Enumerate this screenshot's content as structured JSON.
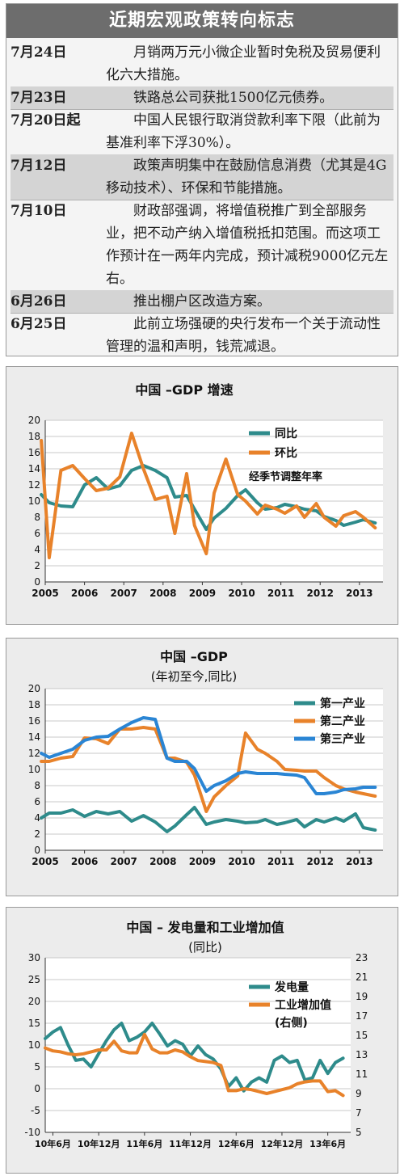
{
  "events": {
    "title": "近期宏观政策转向标志",
    "items": [
      {
        "date": "7月24日",
        "text": "月销两万元小微企业暂时免税及贸易便利化六大措施。",
        "lines": 2,
        "shaded": false
      },
      {
        "date": "7月23日",
        "text": "铁路总公司获批1500亿元债券。",
        "lines": 1,
        "shaded": true
      },
      {
        "date": "7月20日起",
        "text": "中国人民银行取消贷款利率下限（此前为基准利率下浮30%）。",
        "lines": 2,
        "shaded": false
      },
      {
        "date": "7月12日",
        "text": "政策声明集中在鼓励信息消费（尤其是4G移动技术）、环保和节能措施。",
        "lines": 2,
        "shaded": true
      },
      {
        "date": "7月10日",
        "text": "财政部强调，将增值税推广到全部服务业，把不动产纳入增值税抵扣范围。而这项工作预计在一两年内完成，预计减税9000亿元左右。",
        "lines": 4,
        "shaded": false
      },
      {
        "date": "6月26日",
        "text": "推出棚户区改造方案。",
        "lines": 1,
        "shaded": true
      },
      {
        "date": "6月25日",
        "text": "此前立场强硬的央行发布一个关于流动性管理的温和声明，钱荒减退。",
        "lines": 2,
        "shaded": false
      }
    ]
  },
  "chart_data": [
    {
      "type": "line",
      "title": "中国 –GDP 增速",
      "subtitle": "",
      "annotation": "经季节调整年率",
      "x_tick_labels": [
        "2005",
        "2006",
        "2007",
        "2008",
        "2009",
        "2010",
        "2011",
        "2012",
        "2013"
      ],
      "x_range": [
        2005,
        2013.6
      ],
      "ylim": [
        0,
        20
      ],
      "y_ticks": [
        0,
        2,
        4,
        6,
        8,
        10,
        12,
        14,
        16,
        18,
        20
      ],
      "grid": true,
      "legend": "top-right",
      "series": [
        {
          "name": "同比",
          "color": "#2e8b8b",
          "x": [
            2004.9,
            2005.1,
            2005.4,
            2005.7,
            2006.0,
            2006.3,
            2006.6,
            2006.9,
            2007.2,
            2007.5,
            2007.8,
            2008.1,
            2008.3,
            2008.6,
            2008.8,
            2009.1,
            2009.3,
            2009.6,
            2009.9,
            2010.1,
            2010.4,
            2010.6,
            2010.9,
            2011.1,
            2011.4,
            2011.6,
            2011.9,
            2012.1,
            2012.4,
            2012.6,
            2012.9,
            2013.1,
            2013.4
          ],
          "values": [
            10.8,
            9.8,
            9.4,
            9.3,
            12.0,
            12.9,
            11.5,
            11.9,
            13.8,
            14.4,
            13.8,
            12.9,
            10.5,
            10.7,
            9.0,
            6.5,
            7.9,
            9.1,
            10.7,
            11.4,
            9.8,
            9.0,
            9.2,
            9.6,
            9.3,
            9.0,
            8.8,
            8.1,
            7.6,
            7.0,
            7.4,
            7.7,
            7.3
          ]
        },
        {
          "name": "环比",
          "color": "#e8822a",
          "x": [
            2004.9,
            2005.1,
            2005.4,
            2005.7,
            2006.0,
            2006.3,
            2006.6,
            2006.9,
            2007.2,
            2007.5,
            2007.8,
            2008.1,
            2008.3,
            2008.6,
            2008.8,
            2009.1,
            2009.3,
            2009.6,
            2009.9,
            2010.1,
            2010.4,
            2010.6,
            2010.9,
            2011.1,
            2011.4,
            2011.6,
            2011.9,
            2012.1,
            2012.4,
            2012.6,
            2012.9,
            2013.1,
            2013.4
          ],
          "values": [
            17.5,
            3.0,
            13.8,
            14.4,
            12.8,
            11.3,
            11.6,
            13.0,
            18.4,
            14.0,
            10.2,
            10.6,
            6.0,
            13.4,
            7.0,
            3.5,
            11.0,
            15.2,
            10.8,
            10.0,
            8.4,
            9.5,
            9.0,
            8.5,
            9.4,
            8.0,
            9.7,
            8.0,
            6.9,
            8.2,
            8.7,
            8.0,
            6.7
          ]
        }
      ]
    },
    {
      "type": "line",
      "title": "中国 –GDP",
      "subtitle": "(年初至今,同比)",
      "x_tick_labels": [
        "2005",
        "2006",
        "2007",
        "2008",
        "2009",
        "2010",
        "2011",
        "2012",
        "2013"
      ],
      "x_range": [
        2005,
        2013.6
      ],
      "ylim": [
        0,
        20
      ],
      "y_ticks": [
        0,
        2,
        4,
        6,
        8,
        10,
        12,
        14,
        16,
        18,
        20
      ],
      "grid": true,
      "legend": "top-right",
      "series": [
        {
          "name": "第一产业",
          "color": "#2e8b8b",
          "x": [
            2004.9,
            2005.1,
            2005.4,
            2005.7,
            2006.0,
            2006.3,
            2006.6,
            2006.9,
            2007.2,
            2007.5,
            2007.8,
            2008.1,
            2008.3,
            2008.6,
            2008.8,
            2009.1,
            2009.3,
            2009.6,
            2009.9,
            2010.1,
            2010.4,
            2010.6,
            2010.9,
            2011.1,
            2011.4,
            2011.6,
            2011.9,
            2012.1,
            2012.4,
            2012.6,
            2012.9,
            2013.1,
            2013.4
          ],
          "values": [
            4.0,
            4.6,
            4.6,
            5.0,
            4.2,
            4.8,
            4.5,
            4.8,
            3.6,
            4.3,
            3.5,
            2.3,
            3.0,
            4.4,
            5.3,
            3.2,
            3.5,
            3.8,
            3.6,
            3.4,
            3.5,
            3.8,
            3.2,
            3.4,
            3.8,
            2.9,
            3.8,
            3.5,
            4.0,
            3.6,
            4.5,
            2.8,
            2.5
          ]
        },
        {
          "name": "第二产业",
          "color": "#e8822a",
          "x": [
            2004.9,
            2005.1,
            2005.4,
            2005.7,
            2006.0,
            2006.3,
            2006.6,
            2006.9,
            2007.2,
            2007.5,
            2007.8,
            2008.1,
            2008.3,
            2008.6,
            2008.8,
            2009.1,
            2009.3,
            2009.6,
            2009.9,
            2010.1,
            2010.4,
            2010.6,
            2010.9,
            2011.1,
            2011.4,
            2011.6,
            2011.9,
            2012.1,
            2012.4,
            2012.6,
            2012.9,
            2013.1,
            2013.4
          ],
          "values": [
            11.0,
            11.0,
            11.4,
            11.6,
            13.9,
            13.8,
            13.2,
            15.0,
            15.0,
            15.2,
            15.0,
            11.4,
            11.4,
            10.9,
            9.3,
            4.8,
            6.6,
            8.0,
            9.2,
            14.5,
            12.5,
            12.0,
            11.0,
            10.0,
            9.9,
            9.8,
            9.8,
            9.0,
            8.0,
            7.6,
            7.2,
            7.0,
            6.7
          ]
        },
        {
          "name": "第三产业",
          "color": "#2a85d4",
          "x": [
            2004.9,
            2005.1,
            2005.4,
            2005.7,
            2006.0,
            2006.3,
            2006.6,
            2006.9,
            2007.2,
            2007.5,
            2007.8,
            2008.1,
            2008.3,
            2008.6,
            2008.8,
            2009.1,
            2009.3,
            2009.6,
            2009.9,
            2010.1,
            2010.4,
            2010.6,
            2010.9,
            2011.1,
            2011.4,
            2011.6,
            2011.9,
            2012.1,
            2012.4,
            2012.6,
            2012.9,
            2013.1,
            2013.4
          ],
          "values": [
            12.0,
            11.5,
            12.0,
            12.5,
            13.6,
            14.0,
            14.1,
            15.0,
            15.8,
            16.4,
            16.2,
            11.4,
            11.0,
            11.0,
            10.1,
            7.3,
            8.0,
            8.6,
            9.5,
            9.7,
            9.5,
            9.5,
            9.5,
            9.4,
            9.3,
            9.0,
            7.0,
            7.0,
            7.2,
            7.5,
            7.6,
            7.8,
            7.8
          ]
        }
      ]
    },
    {
      "type": "line",
      "title": "中国 – 发电量和工业增加值",
      "subtitle": "(同比)",
      "x_tick_labels": [
        "10年6月",
        "10年12月",
        "11年6月",
        "11年12月",
        "12年6月",
        "12年12月",
        "13年6月"
      ],
      "x_range": [
        0,
        40
      ],
      "ylim": [
        -10,
        30
      ],
      "y_ticks": [
        -10,
        -5,
        0,
        5,
        10,
        15,
        20,
        25,
        30
      ],
      "y2lim": [
        5,
        23
      ],
      "y2_ticks": [
        5,
        7,
        9,
        11,
        13,
        15,
        17,
        19,
        21,
        23
      ],
      "grid": true,
      "legend": "top-right",
      "series": [
        {
          "name": "发电量",
          "color": "#2e8b8b",
          "axis": "left",
          "x": [
            0,
            1,
            2,
            3,
            4,
            5,
            6,
            7,
            8,
            9,
            10,
            11,
            12,
            13,
            14,
            15,
            16,
            17,
            18,
            19,
            20,
            21,
            22,
            23,
            24,
            25,
            26,
            27,
            28,
            29,
            30,
            31,
            32,
            33,
            34,
            35,
            36,
            37,
            38,
            39
          ],
          "values": [
            11.5,
            13.0,
            14.0,
            10.0,
            6.5,
            6.8,
            5.0,
            8.0,
            11.0,
            13.5,
            15.0,
            11.0,
            11.8,
            13.0,
            15.0,
            12.5,
            9.8,
            11.0,
            10.2,
            7.5,
            9.8,
            7.8,
            6.8,
            4.5,
            0.5,
            2.5,
            -0.5,
            1.5,
            2.5,
            1.5,
            6.5,
            7.5,
            6.0,
            6.5,
            2.0,
            2.5,
            6.5,
            3.5,
            6.0,
            7.0
          ]
        },
        {
          "name": "工业增加值",
          "color": "#e8822a",
          "axis": "right",
          "extra_label": "(右侧)",
          "x": [
            0,
            1,
            2,
            3,
            4,
            5,
            6,
            7,
            8,
            9,
            10,
            11,
            12,
            13,
            14,
            15,
            16,
            17,
            18,
            19,
            20,
            21,
            22,
            23,
            24,
            25,
            26,
            27,
            28,
            29,
            30,
            31,
            32,
            33,
            34,
            35,
            36,
            37,
            38,
            39
          ],
          "values": [
            13.7,
            13.4,
            13.3,
            13.1,
            13.0,
            13.1,
            13.3,
            13.5,
            13.5,
            14.4,
            13.4,
            13.2,
            13.2,
            15.1,
            13.6,
            13.2,
            13.2,
            13.5,
            13.3,
            12.8,
            12.4,
            12.3,
            12.2,
            11.9,
            9.3,
            9.3,
            9.5,
            9.4,
            9.2,
            9.0,
            9.2,
            9.4,
            9.6,
            10.0,
            10.2,
            10.3,
            10.3,
            9.2,
            9.3,
            8.8
          ]
        }
      ]
    }
  ]
}
